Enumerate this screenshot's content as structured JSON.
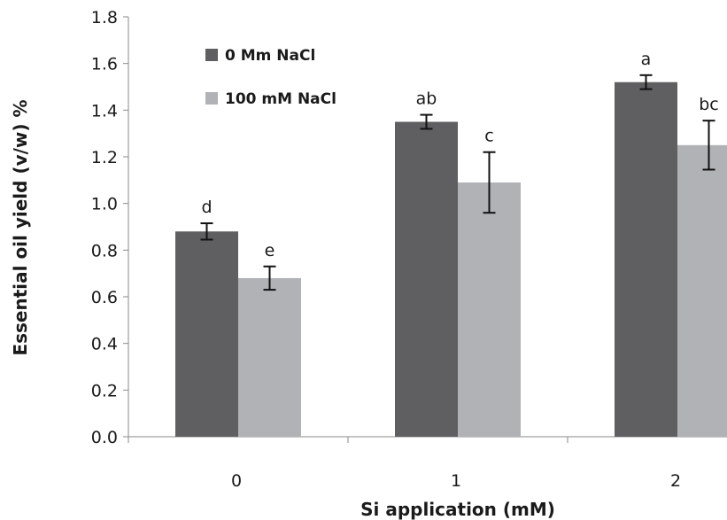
{
  "chart_data": {
    "type": "bar",
    "title": "",
    "xlabel": "Si application (mM)",
    "ylabel": "Essential oil yield (v/w) %",
    "categories": [
      "0",
      "1",
      "2"
    ],
    "ylim": [
      0,
      1.8
    ],
    "yticks": [
      "0.0",
      "0.2",
      "0.4",
      "0.6",
      "0.8",
      "1.0",
      "1.2",
      "1.4",
      "1.6",
      "1.8"
    ],
    "grid": false,
    "legend_position": "top-left",
    "series": [
      {
        "name": "0 Mm NaCl",
        "color": "#5f5f62",
        "values": [
          0.88,
          1.35,
          1.52
        ],
        "errors": [
          0.035,
          0.03,
          0.03
        ],
        "labels": [
          "d",
          "ab",
          "a"
        ]
      },
      {
        "name": "100 mM NaCl",
        "color": "#b1b2b6",
        "values": [
          0.68,
          1.09,
          1.25
        ],
        "errors": [
          0.05,
          0.13,
          0.105
        ],
        "labels": [
          "e",
          "c",
          "bc"
        ]
      }
    ]
  }
}
